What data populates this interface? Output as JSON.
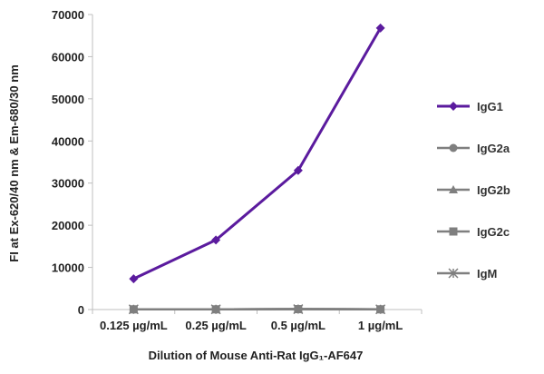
{
  "chart_data": {
    "type": "line",
    "categories": [
      "0.125 µg/mL",
      "0.25 µg/mL",
      "0.5 µg/mL",
      "1 µg/mL"
    ],
    "xlabel": "Dilution of Mouse Anti-Rat IgG₁-AF647",
    "ylabel": "FI at Ex-620/40 nm & Em-680/30 nm",
    "ylim": [
      0,
      70000
    ],
    "yticks": [
      "0",
      "10000",
      "20000",
      "30000",
      "40000",
      "50000",
      "60000",
      "70000"
    ],
    "grid": false,
    "legend_position": "right",
    "series": [
      {
        "name": "IgG1",
        "values": [
          7300,
          16500,
          33000,
          66800
        ],
        "color": "#5b1b9e",
        "marker": "diamond"
      },
      {
        "name": "IgG2a",
        "values": [
          50,
          50,
          100,
          50
        ],
        "color": "#7f7f7f",
        "marker": "circle"
      },
      {
        "name": "IgG2b",
        "values": [
          50,
          50,
          100,
          50
        ],
        "color": "#7f7f7f",
        "marker": "triangle"
      },
      {
        "name": "IgG2c",
        "values": [
          50,
          50,
          100,
          50
        ],
        "color": "#7f7f7f",
        "marker": "square"
      },
      {
        "name": "IgM",
        "values": [
          50,
          50,
          100,
          50
        ],
        "color": "#7f7f7f",
        "marker": "star"
      }
    ]
  }
}
